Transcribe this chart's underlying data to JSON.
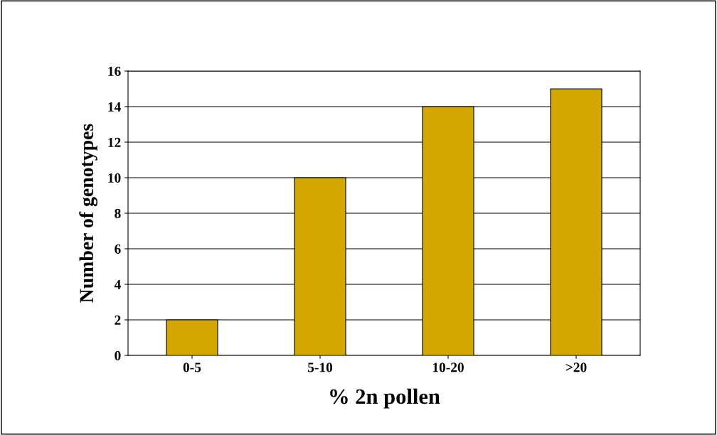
{
  "chart_data": {
    "type": "bar",
    "xlabel": "% 2n pollen",
    "ylabel": "Number of genotypes",
    "categories": [
      "0-5",
      "5-10",
      "10-20",
      ">20"
    ],
    "values": [
      2,
      10,
      14,
      15
    ],
    "color": "#d4a800",
    "ylim": [
      0,
      16
    ],
    "yticks": [
      0,
      2,
      4,
      6,
      8,
      10,
      12,
      14,
      16
    ],
    "grid": "y",
    "legend": false
  }
}
